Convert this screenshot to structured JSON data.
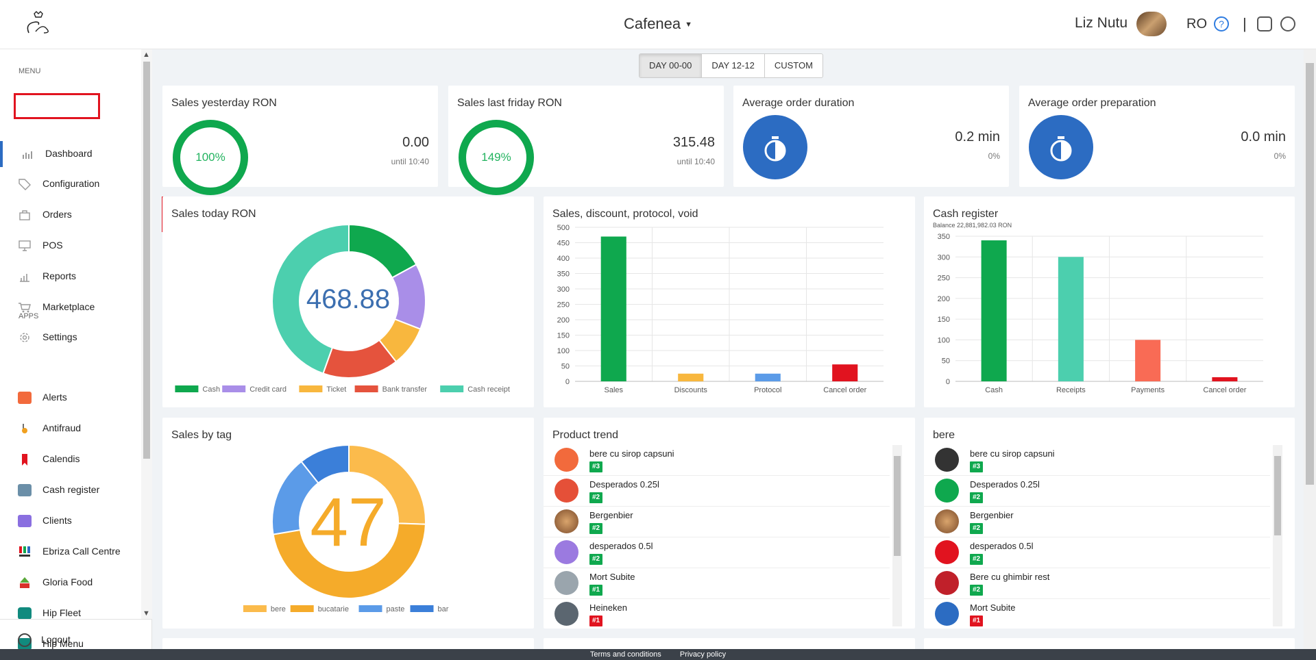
{
  "header": {
    "venue": "Cafenea",
    "user_name": "Liz Nutu",
    "lang": "RO",
    "help": "?",
    "separator": "|"
  },
  "sidebar": {
    "menu_label": "MENU",
    "apps_label": "APPS",
    "menu_items": [
      {
        "label": "Dashboard",
        "icon": "bar-chart-icon"
      },
      {
        "label": "Configuration",
        "icon": "tag-icon"
      },
      {
        "label": "Orders",
        "icon": "bag-icon"
      },
      {
        "label": "POS",
        "icon": "monitor-icon"
      },
      {
        "label": "Reports",
        "icon": "report-icon"
      },
      {
        "label": "Marketplace",
        "icon": "cart-icon"
      },
      {
        "label": "Settings",
        "icon": "gear-icon"
      }
    ],
    "app_items": [
      {
        "label": "Alerts",
        "color": "#f26a3c"
      },
      {
        "label": "Antifraud",
        "color": "#f0a020"
      },
      {
        "label": "Calendis",
        "color": "#e1131f"
      },
      {
        "label": "Cash register",
        "color": "#6b8fa8"
      },
      {
        "label": "Clients",
        "color": "#8a6fe0"
      },
      {
        "label": "Ebriza Call Centre",
        "color": "#e1131f"
      },
      {
        "label": "Gloria Food",
        "color": "#d9302a"
      },
      {
        "label": "Hip Fleet",
        "color": "#118a7e"
      },
      {
        "label": "Hip Menu",
        "color": "#118a7e"
      }
    ],
    "logout": "Logout"
  },
  "tabs": [
    "DAY 00-00",
    "DAY 12-12",
    "CUSTOM"
  ],
  "kpis": {
    "yesterday": {
      "title": "Sales yesterday RON",
      "percent": "100%",
      "value": "0.00",
      "sub": "until 10:40"
    },
    "last_friday": {
      "title": "Sales last friday RON",
      "percent": "149%",
      "value": "315.48",
      "sub": "until 10:40"
    },
    "avg_duration": {
      "title": "Average order duration",
      "value": "0.2 min",
      "sub": "0%"
    },
    "avg_prep": {
      "title": "Average order preparation",
      "value": "0.0 min",
      "sub": "0%"
    }
  },
  "sales_today": {
    "title": "Sales today RON",
    "total": "468.88"
  },
  "sales_by_tag": {
    "title": "Sales by tag",
    "total": "47"
  },
  "sdpv": {
    "title": "Sales, discount, protocol, void"
  },
  "cash_register": {
    "title": "Cash register",
    "balance": "Balance 22,881,982.03 RON"
  },
  "product_trend": {
    "title": "Product trend",
    "items": [
      {
        "name": "bere cu sirop capsuni",
        "rank": "#3",
        "color": "#f26a3c"
      },
      {
        "name": "Desperados 0.25l",
        "rank": "#2",
        "color": "#e55038"
      },
      {
        "name": "Bergenbier",
        "rank": "#2",
        "color": "#b07a50"
      },
      {
        "name": "desperados 0.5l",
        "rank": "#2",
        "color": "#9b7ae0"
      },
      {
        "name": "Mort Subite",
        "rank": "#1",
        "color": "#9aa5ad"
      },
      {
        "name": "Heineken",
        "rank": "#1",
        "color": "#5b6670"
      }
    ]
  },
  "bere": {
    "title": "bere",
    "items": [
      {
        "name": "bere cu sirop capsuni",
        "rank": "#3",
        "color": "#333333"
      },
      {
        "name": "Desperados 0.25l",
        "rank": "#2",
        "color": "#0fa84e"
      },
      {
        "name": "Bergenbier",
        "rank": "#2",
        "color": "#b07a50"
      },
      {
        "name": "desperados 0.5l",
        "rank": "#2",
        "color": "#e1131f"
      },
      {
        "name": "Bere cu ghimbir rest",
        "rank": "#2",
        "color": "#c0202a"
      },
      {
        "name": "Mort Subite",
        "rank": "#1",
        "color": "#2c6cc2"
      }
    ]
  },
  "footer": {
    "terms": "Terms and conditions",
    "privacy": "Privacy policy"
  },
  "chart_data": [
    {
      "type": "pie",
      "title": "Sales today RON",
      "categories": [
        "Cash",
        "Credit card",
        "Ticket",
        "Bank transfer",
        "Cash receipt"
      ],
      "values": [
        80,
        65,
        40,
        75,
        208.88
      ],
      "colors": [
        "#0fa84e",
        "#a98ee8",
        "#f8b73e",
        "#e5533d",
        "#4ccfae"
      ]
    },
    {
      "type": "bar",
      "title": "Sales, discount, protocol, void",
      "categories": [
        "Sales",
        "Discounts",
        "Protocol",
        "Cancel order"
      ],
      "values": [
        470,
        25,
        25,
        55
      ],
      "colors": [
        "#0fa84e",
        "#f8b73e",
        "#5b9be8",
        "#e1131f"
      ],
      "ylim": [
        0,
        500
      ],
      "yticks": [
        0,
        50,
        100,
        150,
        200,
        250,
        300,
        350,
        400,
        450,
        500
      ]
    },
    {
      "type": "bar",
      "title": "Cash register",
      "categories": [
        "Cash",
        "Receipts",
        "Payments",
        "Cancel order"
      ],
      "values": [
        340,
        300,
        100,
        10
      ],
      "colors": [
        "#0fa84e",
        "#4ccfae",
        "#f96b55",
        "#e1131f"
      ],
      "ylim": [
        0,
        350
      ],
      "yticks": [
        0,
        50,
        100,
        150,
        200,
        250,
        300,
        350
      ]
    },
    {
      "type": "pie",
      "title": "Sales by tag",
      "categories": [
        "bere",
        "bucatarie",
        "paste",
        "bar"
      ],
      "values": [
        12,
        22,
        8,
        5
      ],
      "colors": [
        "#fbbb4c",
        "#f5ab2a",
        "#5b9be8",
        "#3b7fd9"
      ]
    }
  ]
}
